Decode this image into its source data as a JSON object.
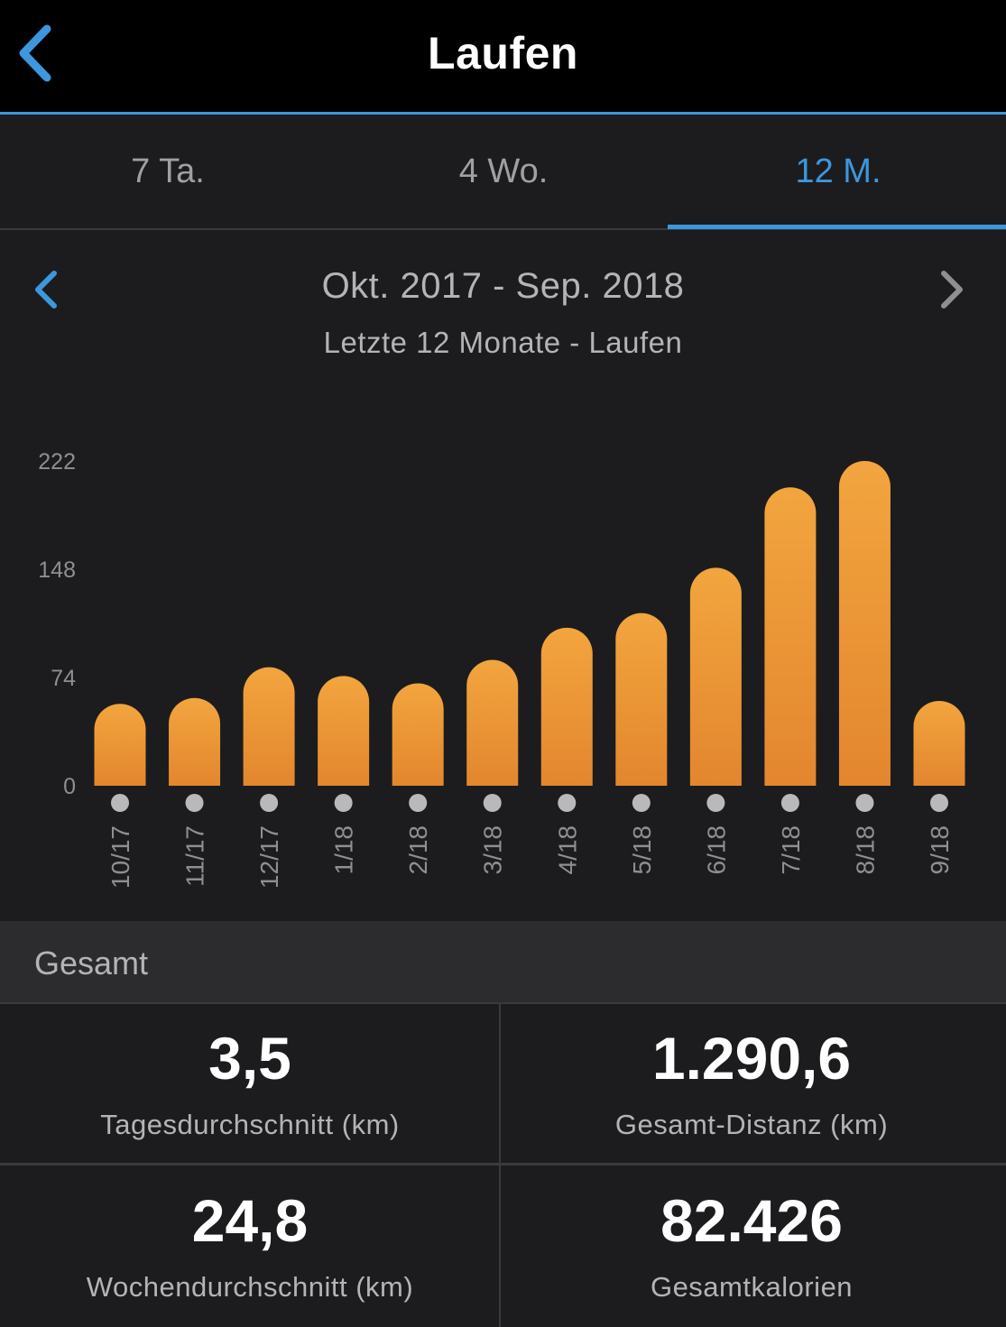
{
  "header": {
    "title": "Laufen",
    "back_icon": "chevron-left-icon"
  },
  "tabs": [
    {
      "label": "7 Ta.",
      "active": false
    },
    {
      "label": "4 Wo.",
      "active": false
    },
    {
      "label": "12 M.",
      "active": true
    }
  ],
  "period": {
    "range": "Okt. 2017 - Sep. 2018",
    "subtitle": "Letzte 12 Monate - Laufen"
  },
  "colors": {
    "accent": "#3d97dd",
    "bar_top": "#f2a53e",
    "bar_bottom": "#e3862f",
    "dot": "#b9b9bb"
  },
  "chart_data": {
    "type": "bar",
    "categories": [
      "10/17",
      "11/17",
      "12/17",
      "1/18",
      "2/18",
      "3/18",
      "4/18",
      "5/18",
      "6/18",
      "7/18",
      "8/18",
      "9/18"
    ],
    "values": [
      56,
      60,
      81,
      75,
      70,
      86,
      108,
      118,
      149,
      204,
      222,
      58
    ],
    "ylim": [
      0,
      222
    ],
    "yticks": [
      "0",
      "74",
      "148",
      "222"
    ],
    "grid": false,
    "legend": false
  },
  "summary": {
    "heading": "Gesamt",
    "stats": [
      {
        "value": "3,5",
        "label": "Tagesdurchschnitt (km)"
      },
      {
        "value": "1.290,6",
        "label": "Gesamt-Distanz (km)"
      },
      {
        "value": "24,8",
        "label": "Wochendurchschnitt (km)"
      },
      {
        "value": "82.426",
        "label": "Gesamtkalorien"
      }
    ]
  }
}
